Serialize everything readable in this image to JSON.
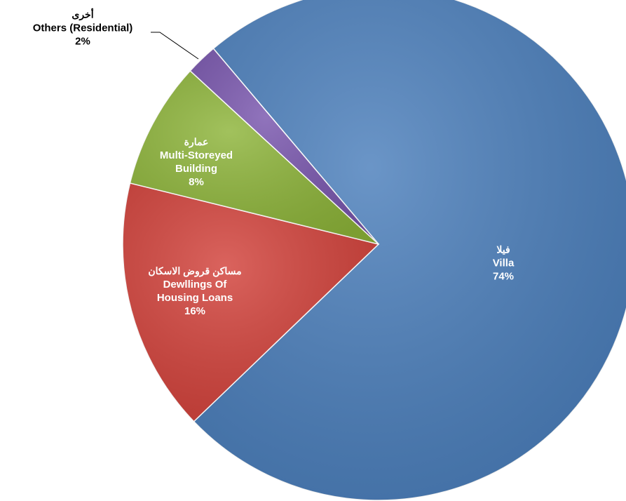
{
  "chart_data": {
    "type": "pie",
    "categories": [
      "Villa",
      "Dewllings Of Housing Loans",
      "Multi-Storeyed Building",
      "Others (Residential)"
    ],
    "arabic_labels": [
      "فيلا",
      "مساكن قروض الاسكان",
      "عمارة",
      "أخرى"
    ],
    "values": [
      74,
      16,
      8,
      2
    ],
    "value_labels": [
      "74%",
      "16%",
      "8%",
      "2%"
    ],
    "colors": [
      "#4a7ebb",
      "#d2413a",
      "#8db439",
      "#7855ad"
    ]
  }
}
